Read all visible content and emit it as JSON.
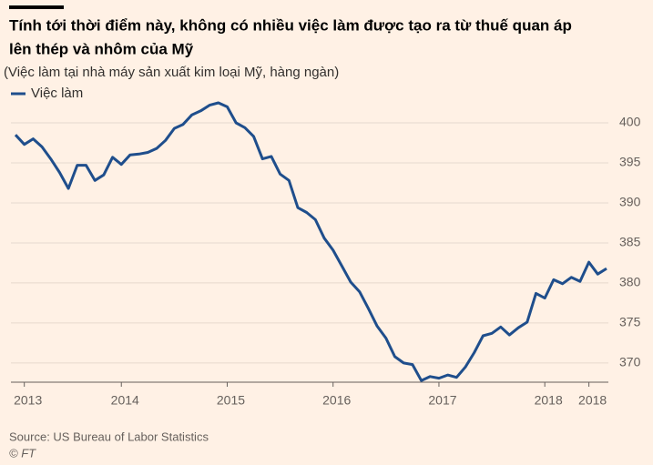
{
  "chart_data": {
    "type": "line",
    "title": "Tính tới thời điểm này, không có nhiều việc làm được tạo ra từ thuế quan áp",
    "title_line2": "lên thép và nhôm của Mỹ",
    "subtitle": "(Việc làm tại nhà máy sản xuất kim loại Mỹ, hàng ngàn)",
    "source": "Source: US Bureau of Labor Statistics",
    "credit": "© FT",
    "categories": [
      null,
      "2013",
      null,
      null,
      null,
      null,
      null,
      null,
      null,
      null,
      null,
      null,
      "2014",
      null,
      null,
      null,
      null,
      null,
      null,
      null,
      null,
      null,
      null,
      null,
      "2015",
      null,
      null,
      null,
      null,
      null,
      null,
      null,
      null,
      null,
      null,
      null,
      "2016",
      null,
      null,
      null,
      null,
      null,
      null,
      null,
      null,
      null,
      null,
      null,
      "2017",
      null,
      null,
      null,
      null,
      null,
      null,
      null,
      null,
      null,
      null,
      null,
      "2018",
      null,
      null,
      null,
      null,
      "2018",
      null,
      null
    ],
    "series": [
      {
        "name": "Việc làm",
        "color": "#1f4e8c",
        "values": [
          398.5,
          397.3,
          398,
          397,
          395.5,
          393.8,
          391.8,
          394.7,
          394.7,
          392.8,
          393.5,
          395.7,
          394.8,
          396,
          396.1,
          396.3,
          396.8,
          397.8,
          399.3,
          399.8,
          401,
          401.5,
          402.2,
          402.5,
          402,
          400,
          399.4,
          398.3,
          395.5,
          395.8,
          393.6,
          392.8,
          389.4,
          388.8,
          387.9,
          385.6,
          384.1,
          382.1,
          380.1,
          378.9,
          376.8,
          374.6,
          373.1,
          370.8,
          370,
          369.8,
          367.8,
          368.3,
          368.1,
          368.5,
          368.2,
          369.5,
          371.3,
          373.4,
          373.7,
          374.5,
          373.5,
          374.4,
          375.1,
          378.7,
          378.1,
          380.4,
          379.9,
          380.7,
          380.2,
          382.6,
          381.1,
          381.8
        ]
      }
    ],
    "ylim": [
      367.6,
      403
    ],
    "yticks": [
      370,
      375,
      380,
      385,
      390,
      395,
      400
    ],
    "grid": true
  }
}
